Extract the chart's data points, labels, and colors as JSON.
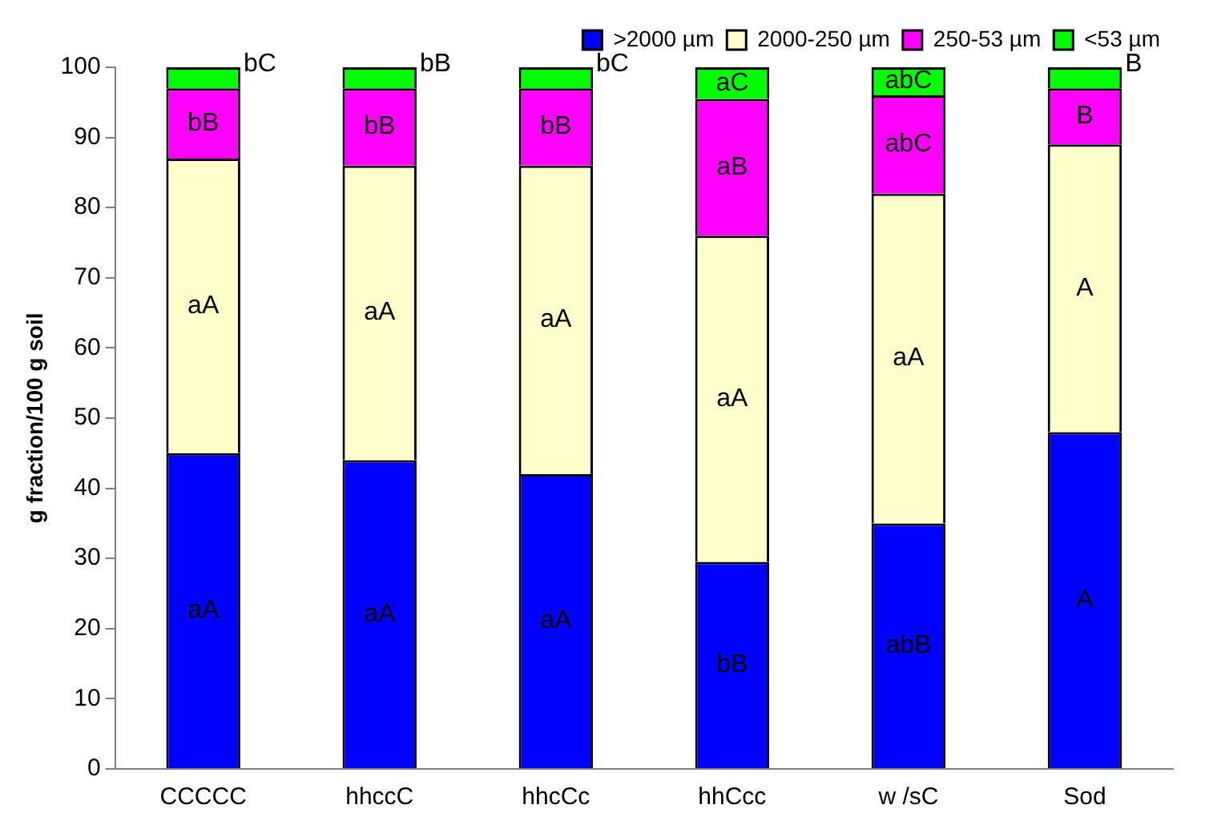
{
  "chart_data": {
    "type": "bar",
    "stacked": true,
    "ylabel": "g fraction/100 g soil",
    "categories": [
      "CCCCC",
      "hhccC",
      "hhcCc",
      "hhCcc",
      "w /sC",
      "Sod"
    ],
    "series": [
      {
        "name": ">2000 µm",
        "color": "#0000ff",
        "values": [
          45,
          44,
          42,
          29.5,
          35,
          48
        ],
        "value_labels": [
          "aA",
          "aA",
          "aA",
          "bB",
          "abB",
          "A"
        ]
      },
      {
        "name": "2000-250 µm",
        "color": "#ffffcc",
        "values": [
          42,
          42,
          44,
          46.5,
          47,
          41
        ],
        "value_labels": [
          "aA",
          "aA",
          "aA",
          "aA",
          "aA",
          "A"
        ]
      },
      {
        "name": "250-53 µm",
        "color": "#ff00ff",
        "values": [
          10,
          11,
          11,
          19.5,
          14,
          8
        ],
        "value_labels": [
          "bB",
          "bB",
          "bB",
          "aB",
          "abC",
          "B"
        ]
      },
      {
        "name": "<53 µm",
        "color": "#00ff00",
        "values": [
          3,
          3,
          3,
          4.5,
          4,
          3
        ],
        "value_labels": [
          "bC",
          "bB",
          "bC",
          "aC",
          "abC",
          "B"
        ]
      }
    ],
    "ylim": [
      0,
      100
    ],
    "yticks": [
      0,
      10,
      20,
      30,
      40,
      50,
      60,
      70,
      80,
      90,
      100
    ],
    "grid": false,
    "legend": "top right"
  }
}
